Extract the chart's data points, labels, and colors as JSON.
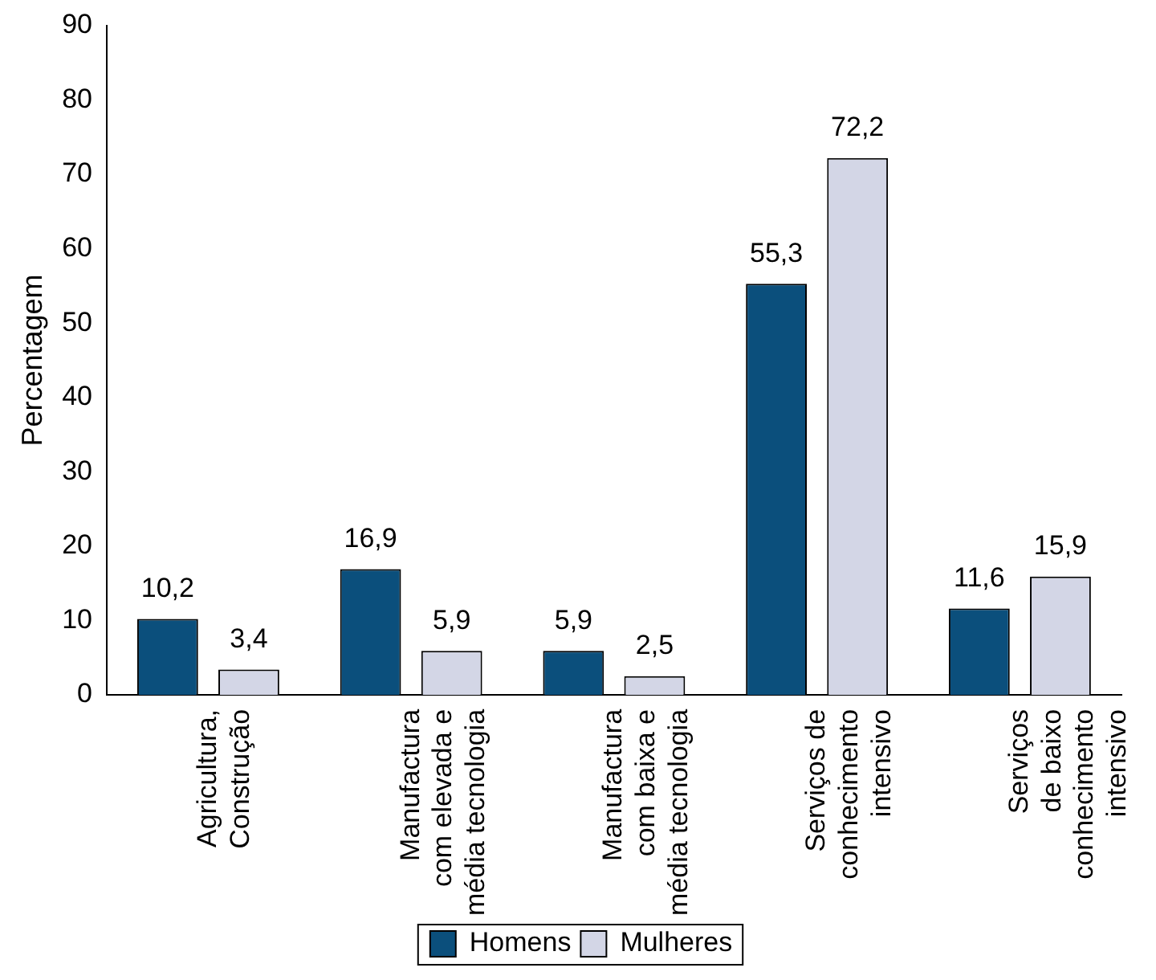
{
  "chart_data": {
    "type": "bar",
    "ylabel": "Percentagem",
    "categories": [
      "Agricultura,\nConstrução",
      "Manufactura\ncom elevada e\nmédia tecnologia",
      "Manufactura\ncom baixa e\nmédia tecnologia",
      "Serviços de\nconhecimento\nintensivo",
      "Serviços\nde baixo\nconhecimento\nintensivo"
    ],
    "series": [
      {
        "name": "Homens",
        "color": "#0b4f7c",
        "values": [
          10.2,
          16.9,
          5.9,
          55.3,
          11.6
        ],
        "value_labels": [
          "10,2",
          "16,9",
          "5,9",
          "55,3",
          "11,6"
        ]
      },
      {
        "name": "Mulheres",
        "color": "#d3d6e6",
        "values": [
          3.4,
          5.9,
          2.5,
          72.2,
          15.9
        ],
        "value_labels": [
          "3,4",
          "5,9",
          "2,5",
          "72,2",
          "15,9"
        ]
      }
    ],
    "ylim": [
      0,
      90
    ],
    "yticks": [
      0,
      10,
      20,
      30,
      40,
      50,
      60,
      70,
      80,
      90
    ],
    "grid": false,
    "legend": "bottom"
  }
}
